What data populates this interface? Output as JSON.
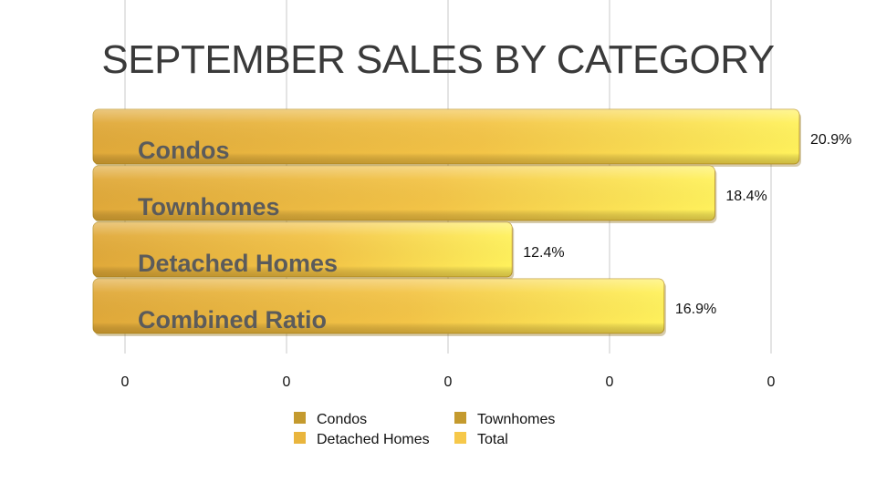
{
  "chart_data": {
    "type": "bar",
    "orientation": "horizontal",
    "title": "SEPTEMBER SALES BY CATEGORY",
    "categories": [
      "Condos",
      "Townhomes",
      "Detached Homes",
      "Combined Ratio"
    ],
    "values": [
      20.9,
      18.4,
      12.4,
      16.9
    ],
    "value_labels": [
      "20.9%",
      "18.4%",
      "12.4%",
      "16.9%"
    ],
    "x_tick_labels": [
      "0",
      "0",
      "0",
      "0",
      "0"
    ],
    "xlim": [
      0,
      20.9
    ],
    "grid": true,
    "legend": {
      "placement": "bottom",
      "entries": [
        {
          "name": "Condos",
          "color": "#c49a2e"
        },
        {
          "name": "Townhomes",
          "color": "#c49a2e"
        },
        {
          "name": "Detached Homes",
          "color": "#e9b53d"
        },
        {
          "name": "Total",
          "color": "#f6c84a"
        }
      ]
    },
    "colors": {
      "bar_dark": "#d4a530",
      "bar_light": "#fff15c",
      "grid": "#c8c8c8"
    }
  }
}
